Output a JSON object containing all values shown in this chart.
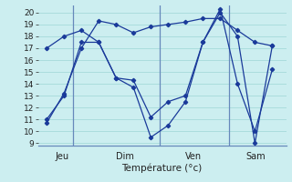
{
  "xlabel": "Température (°c)",
  "background_color": "#cceef0",
  "grid_color": "#aadddd",
  "line_color": "#1a3a9a",
  "vline_color": "#6688bb",
  "ylim": [
    8.8,
    20.6
  ],
  "yticks": [
    9,
    10,
    11,
    12,
    13,
    14,
    15,
    16,
    17,
    18,
    19,
    20
  ],
  "day_labels": [
    "Jeu",
    "Dim",
    "Ven",
    "Sam"
  ],
  "day_positions": [
    0.5,
    4.0,
    8.0,
    11.5
  ],
  "vline_positions": [
    1.5,
    6.5,
    10.5
  ],
  "line1_x": [
    0,
    1,
    2,
    3,
    4,
    5,
    6,
    7,
    8,
    9,
    10,
    11,
    12,
    13
  ],
  "line1_y": [
    10.7,
    13.2,
    17.0,
    19.3,
    19.0,
    18.3,
    18.8,
    19.0,
    19.2,
    19.5,
    19.5,
    18.5,
    17.5,
    17.2
  ],
  "line2_x": [
    0,
    1,
    2,
    3,
    4,
    5,
    6,
    7,
    8,
    9,
    10,
    11,
    12,
    13
  ],
  "line2_y": [
    11.0,
    13.0,
    17.5,
    17.5,
    14.5,
    14.3,
    11.2,
    12.5,
    13.0,
    17.5,
    20.3,
    14.0,
    10.0,
    15.2
  ],
  "line3_x": [
    0,
    1,
    2,
    3,
    4,
    5,
    6,
    7,
    8,
    9,
    10,
    11,
    12,
    13
  ],
  "line3_y": [
    17.0,
    18.0,
    18.5,
    17.5,
    14.5,
    13.7,
    9.5,
    10.5,
    12.5,
    17.5,
    20.0,
    18.0,
    9.0,
    17.2
  ],
  "xlim": [
    -0.5,
    13.8
  ],
  "ytick_fontsize": 6.5,
  "xlabel_fontsize": 7.5,
  "day_label_fontsize": 7.0
}
